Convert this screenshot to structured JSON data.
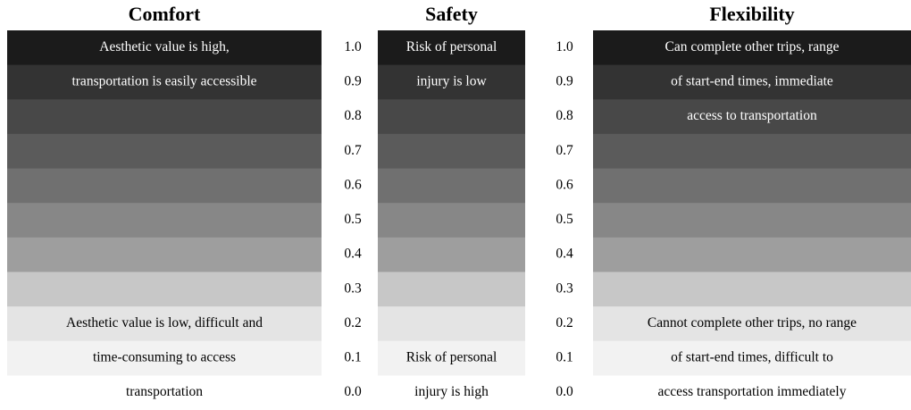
{
  "columns": [
    {
      "title": "Comfort",
      "top_lines": [
        "Aesthetic value is high,",
        "transportation is easily accessible"
      ],
      "bottom_lines": [
        "Aesthetic value is low, difficult and",
        "time-consuming to access",
        "transportation"
      ]
    },
    {
      "title": "Safety",
      "top_lines": [
        "Risk of  personal",
        "injury is low"
      ],
      "bottom_lines": [
        "Risk of personal",
        "injury is high"
      ]
    },
    {
      "title": "Flexibility",
      "top_lines": [
        "Can complete other trips, range",
        "of start-end times, immediate",
        "access to transportation"
      ],
      "bottom_lines": [
        "Cannot complete other trips, no range",
        "of start-end times, difficult to",
        "access transportation immediately"
      ]
    }
  ],
  "scale": [
    "1.0",
    "0.9",
    "0.8",
    "0.7",
    "0.6",
    "0.5",
    "0.4",
    "0.3",
    "0.2",
    "0.1",
    "0.0"
  ]
}
